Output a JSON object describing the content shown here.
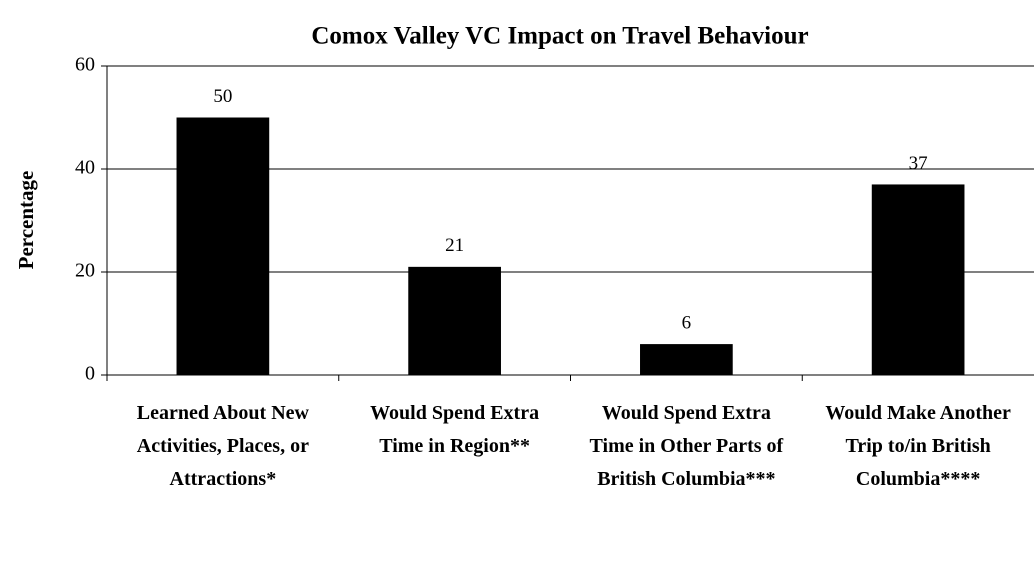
{
  "chart_data": {
    "type": "bar",
    "title": "Comox Valley VC Impact on Travel Behaviour",
    "y_label": "Percentage",
    "categories": [
      "Learned About New Activities, Places, or Attractions*",
      "Would Spend Extra Time in Region**",
      "Would Spend Extra Time in Other Parts of British Columbia***",
      "Would Make Another Trip to/in British Columbia****"
    ],
    "values": [
      50,
      21,
      6,
      37
    ],
    "color": "#000000",
    "ylim": [
      0,
      60
    ],
    "yticks": [
      0,
      20,
      40,
      60
    ],
    "grid": true,
    "data_labels": true
  }
}
